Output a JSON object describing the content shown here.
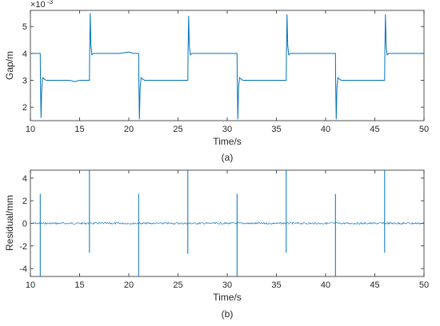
{
  "chart_data": [
    {
      "type": "line",
      "caption": "(a)",
      "xlabel": "Time/s",
      "ylabel": "Gap/m",
      "y_exponent_label": "×10",
      "y_exponent": "-3",
      "xlim": [
        10,
        50
      ],
      "ylim": [
        1.5,
        5.6
      ],
      "xticks": [
        "10",
        "15",
        "20",
        "25",
        "30",
        "35",
        "40",
        "45",
        "50"
      ],
      "xtick_values": [
        10,
        15,
        20,
        25,
        30,
        35,
        40,
        45,
        50
      ],
      "yticks": [
        "2",
        "3",
        "4",
        "5"
      ],
      "ytick_values": [
        2,
        3,
        4,
        5
      ],
      "grid": false,
      "legend": "none",
      "color": "#0072BD",
      "series": [
        {
          "x": [
            10,
            11,
            11.02,
            11.08,
            11.15,
            11.25,
            11.4,
            11.6,
            12,
            13,
            14,
            14.5,
            15,
            15.5,
            16,
            16.02,
            16.08,
            16.15,
            16.25,
            16.4,
            16.6,
            17,
            18,
            19,
            20,
            20.5,
            21,
            21.02,
            21.08,
            21.15,
            21.25,
            21.4,
            21.6,
            22,
            23,
            24,
            24.5,
            25,
            25.5,
            26,
            26.02,
            26.08,
            26.15,
            26.25,
            26.4,
            26.6,
            27,
            28,
            29,
            30,
            30.5,
            31,
            31.02,
            31.08,
            31.15,
            31.25,
            31.4,
            31.6,
            32,
            33,
            34,
            34.5,
            35,
            35.5,
            36,
            36.02,
            36.08,
            36.15,
            36.25,
            36.4,
            36.6,
            37,
            38,
            39,
            40,
            40.5,
            41,
            41.02,
            41.08,
            41.15,
            41.25,
            41.4,
            41.6,
            42,
            43,
            44,
            44.5,
            45,
            45.5,
            46,
            46.02,
            46.08,
            46.15,
            46.25,
            46.4,
            46.6,
            47,
            48,
            49,
            50
          ],
          "y": [
            4.0,
            4.0,
            3.0,
            1.6,
            2.7,
            3.1,
            3.05,
            3.0,
            3.0,
            3.0,
            3.0,
            2.95,
            3.0,
            3.0,
            3.0,
            4.0,
            5.5,
            4.3,
            3.95,
            4.0,
            4.0,
            4.0,
            4.0,
            4.0,
            4.05,
            4.0,
            4.0,
            3.0,
            1.55,
            2.7,
            3.1,
            3.05,
            3.0,
            3.0,
            3.0,
            3.0,
            3.0,
            3.0,
            3.0,
            3.0,
            4.0,
            5.4,
            4.3,
            3.95,
            4.0,
            4.0,
            4.0,
            4.0,
            4.0,
            4.0,
            4.0,
            4.0,
            3.0,
            1.55,
            2.7,
            3.1,
            3.05,
            3.0,
            3.0,
            3.0,
            3.0,
            3.0,
            3.0,
            3.0,
            3.0,
            4.0,
            5.45,
            4.3,
            3.95,
            4.0,
            4.0,
            4.0,
            4.0,
            4.0,
            4.0,
            4.0,
            4.0,
            3.0,
            1.55,
            2.7,
            3.1,
            3.05,
            3.0,
            3.0,
            3.0,
            3.0,
            3.0,
            3.0,
            3.0,
            3.0,
            4.0,
            5.45,
            4.3,
            3.95,
            4.0,
            4.0,
            4.0,
            4.0,
            4.0,
            4.0
          ]
        }
      ]
    },
    {
      "type": "line",
      "caption": "(b)",
      "xlabel": "Time/s",
      "ylabel": "Residual/mm",
      "xlim": [
        10,
        50
      ],
      "ylim": [
        -4.7,
        4.7
      ],
      "xticks": [
        "10",
        "15",
        "20",
        "25",
        "30",
        "35",
        "40",
        "45",
        "50"
      ],
      "xtick_values": [
        10,
        15,
        20,
        25,
        30,
        35,
        40,
        45,
        50
      ],
      "yticks": [
        "-4",
        "-2",
        "0",
        "2",
        "4"
      ],
      "ytick_values": [
        -4,
        -2,
        0,
        2,
        4
      ],
      "grid": false,
      "legend": "none",
      "color": "#0072BD",
      "baseline": 0,
      "noise_amplitude": 0.08,
      "spikes": [
        {
          "x": 11,
          "min": -4.7,
          "max": 2.6
        },
        {
          "x": 16,
          "min": -2.6,
          "max": 4.7
        },
        {
          "x": 21,
          "min": -4.7,
          "max": 2.6
        },
        {
          "x": 26,
          "min": -2.7,
          "max": 4.7
        },
        {
          "x": 31,
          "min": -4.7,
          "max": 2.6
        },
        {
          "x": 36,
          "min": -2.6,
          "max": 4.7
        },
        {
          "x": 41,
          "min": -4.7,
          "max": 2.6
        },
        {
          "x": 46,
          "min": -2.6,
          "max": 4.7
        }
      ]
    }
  ]
}
